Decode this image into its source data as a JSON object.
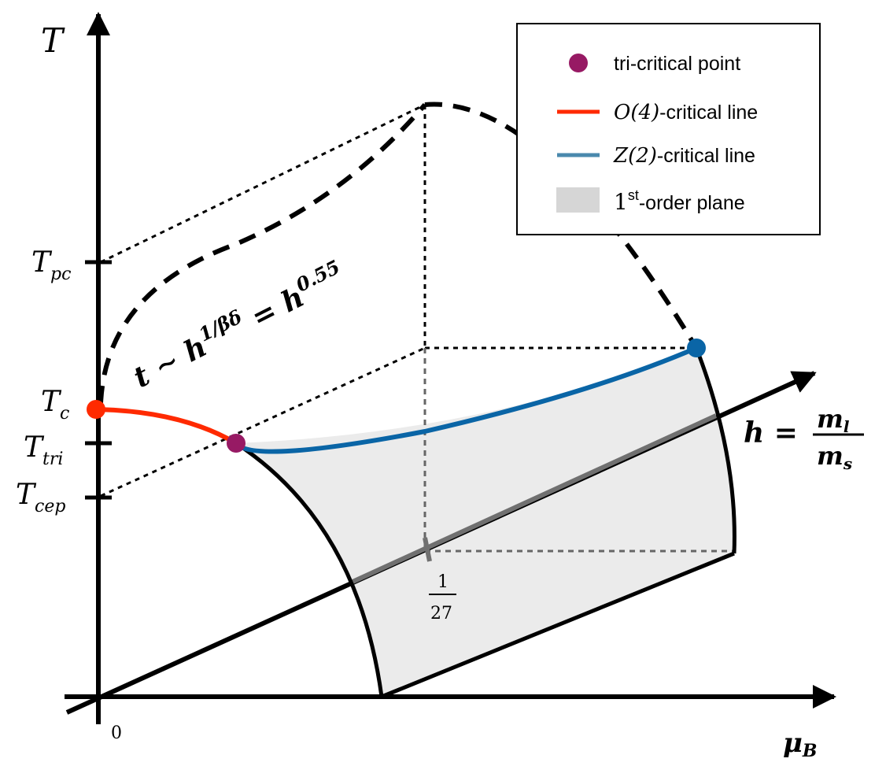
{
  "axes": {
    "t_label": "T",
    "mu_label": "μ",
    "mu_sub": "B",
    "h_label_lhs": "h =",
    "h_numer": "m",
    "h_numer_sub": "l",
    "h_denom": "m",
    "h_denom_sub": "s",
    "origin_label": "0"
  },
  "t_ticks": [
    {
      "main": "T",
      "sub": "pc"
    },
    {
      "main": "T",
      "sub": "c"
    },
    {
      "main": "T",
      "sub": "tri"
    },
    {
      "main": "T",
      "sub": "cep"
    }
  ],
  "scaling": {
    "lhs": "t ∼ h",
    "exp": "1/βδ",
    "mid": " = h",
    "exp2": "0.55"
  },
  "fraction_tick": {
    "numer": "1",
    "denom": "27"
  },
  "legend": {
    "items": [
      {
        "pre": "",
        "math": "",
        "text": "tri-critical point",
        "color": "#971a64"
      },
      {
        "pre": "",
        "math": "O(4)",
        "text": "-critical line",
        "color": "#ff2a00"
      },
      {
        "pre": "",
        "math": "Z(2)",
        "text": "-critical line",
        "color": "#4a89ad"
      },
      {
        "pre": "1",
        "math": "st",
        "text": "-order plane",
        "color": "#d6d6d6"
      }
    ]
  },
  "colors": {
    "o4_line": "#ff2a00",
    "z2_line": "#0a65a6",
    "tricritical": "#971a64",
    "plane_fill": "#ebebeb",
    "gray_line": "#707070"
  }
}
